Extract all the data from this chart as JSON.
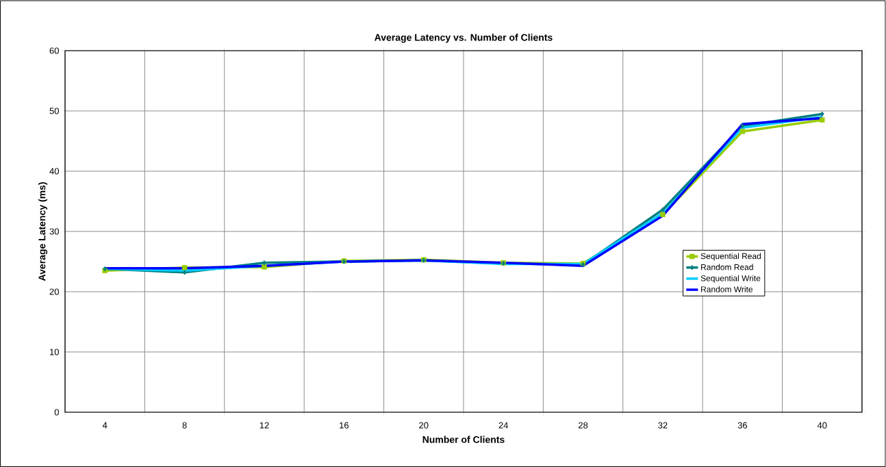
{
  "chart_data": {
    "type": "line",
    "title": "Average Latency vs. Number of Clients",
    "xlabel": "Number of Clients",
    "ylabel": "Average Latency (ms)",
    "categories": [
      "4",
      "8",
      "12",
      "16",
      "20",
      "24",
      "28",
      "32",
      "36",
      "40"
    ],
    "series": [
      {
        "name": "Sequential Read",
        "color": "#99cc00",
        "marker": "square",
        "values": [
          23.5,
          24.0,
          24.1,
          25.1,
          25.3,
          24.8,
          24.7,
          32.8,
          46.6,
          48.5
        ]
      },
      {
        "name": "Random Read",
        "color": "#008080",
        "marker": "diamond",
        "values": [
          23.8,
          23.2,
          24.8,
          25.0,
          25.2,
          24.7,
          24.5,
          33.6,
          47.5,
          49.5
        ]
      },
      {
        "name": "Sequential Write",
        "color": "#00ccff",
        "marker": "none",
        "values": [
          23.8,
          23.5,
          24.3,
          25.0,
          25.2,
          24.6,
          24.6,
          33.0,
          47.2,
          49.0
        ]
      },
      {
        "name": "Random Write",
        "color": "#0000ff",
        "marker": "none",
        "values": [
          23.9,
          23.9,
          24.3,
          25.0,
          25.2,
          24.8,
          24.3,
          32.6,
          47.8,
          48.8
        ]
      }
    ],
    "ylim": [
      0,
      60
    ],
    "yticks": [
      0,
      10,
      20,
      30,
      40,
      50,
      60
    ],
    "grid": true,
    "legend": "right",
    "line_style": "solid"
  }
}
